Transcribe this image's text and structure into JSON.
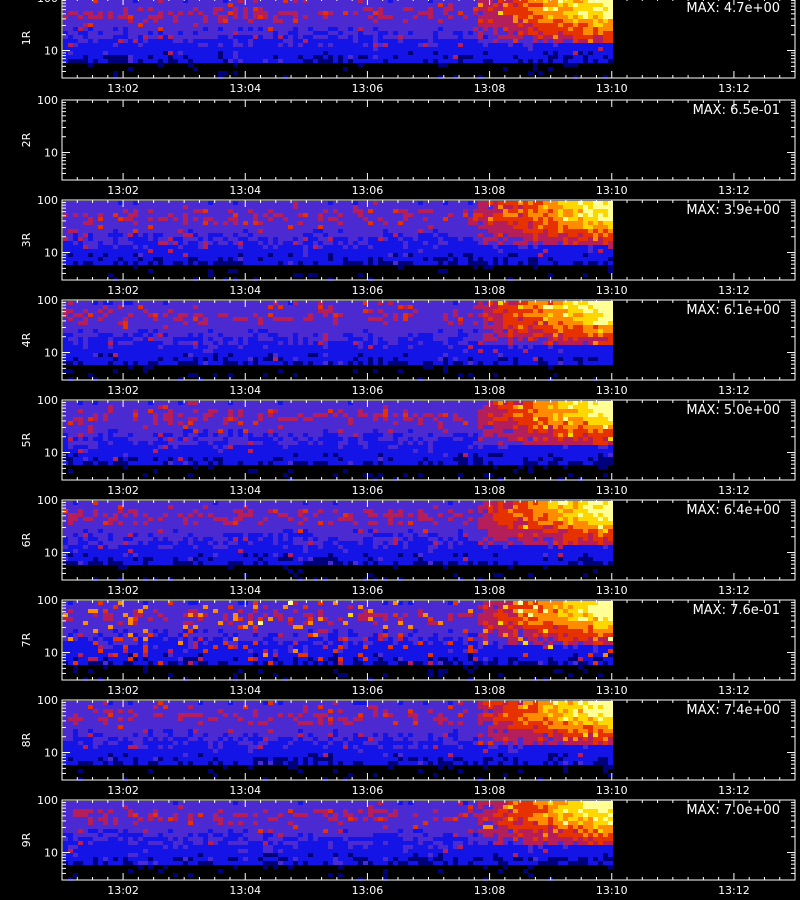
{
  "chart_data": {
    "type": "heatmap",
    "x_range": [
      "13:01:00",
      "13:13:00"
    ],
    "data_end": "13:10",
    "x_tick_labels": [
      "13:02",
      "13:04",
      "13:06",
      "13:08",
      "13:10",
      "13:12"
    ],
    "y_scale": "log",
    "y_range": [
      3,
      100
    ],
    "y_tick_labels": [
      "100",
      "10"
    ],
    "colors": {
      "background": "#000000",
      "axis": "#ffffff",
      "colormap": [
        "#000000",
        "#00007a",
        "#1414e6",
        "#4b2ad2",
        "#b41e5a",
        "#e63200",
        "#ff8c00",
        "#ffd700",
        "#ffff96"
      ]
    },
    "panels": [
      {
        "label": "1R",
        "max_text": "MAX: 4.7e+00",
        "max": 4.7
      },
      {
        "label": "2R",
        "max_text": "MAX: 6.5e-01",
        "max": 0.65,
        "empty": true
      },
      {
        "label": "3R",
        "max_text": "MAX: 3.9e+00",
        "max": 3.9
      },
      {
        "label": "4R",
        "max_text": "MAX: 6.1e+00",
        "max": 6.1
      },
      {
        "label": "5R",
        "max_text": "MAX: 5.0e+00",
        "max": 5.0
      },
      {
        "label": "6R",
        "max_text": "MAX: 6.4e+00",
        "max": 6.4
      },
      {
        "label": "7R",
        "max_text": "MAX: 7.6e-01",
        "max": 0.76,
        "sparse": true
      },
      {
        "label": "8R",
        "max_text": "MAX: 7.4e+00",
        "max": 7.4
      },
      {
        "label": "9R",
        "max_text": "MAX: 7.0e+00",
        "max": 7.0
      }
    ]
  }
}
